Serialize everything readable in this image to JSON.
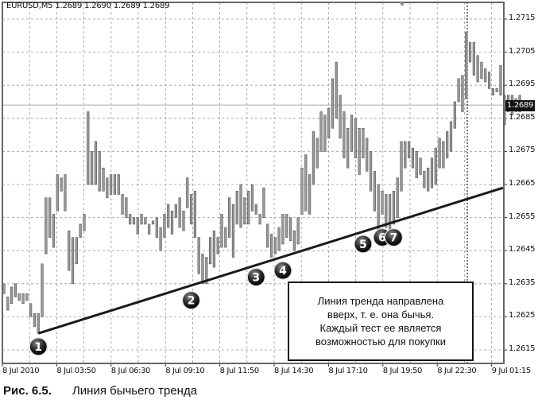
{
  "header": {
    "symbol": "EURUSD,M5",
    "ohlc": "1.2689 1.2690 1.2689 1.2689"
  },
  "current_price_label": "1.2689",
  "note": {
    "lines": [
      "Линия тренда направлена",
      "вверх, т. е. она бычья.",
      "Каждый тест ее является",
      "возможностью для покупки"
    ]
  },
  "caption": {
    "number": "Рис. 6.5.",
    "title": "Линия бычьего тренда"
  },
  "colors": {
    "bar_fill": "#9a9a9a",
    "bar_edge": "#555555",
    "trendline": "#1a1a1a",
    "grid": "#9a9a9a",
    "marker": "#1a1a1a"
  },
  "chart_data": {
    "type": "bar",
    "subtype": "ohlc-range",
    "grid": true,
    "ylim": [
      1.2608,
      1.272
    ],
    "y_ticks": [
      "1.2715",
      "1.2705",
      "1.2695",
      "1.2685",
      "1.2675",
      "1.2665",
      "1.2655",
      "1.2645",
      "1.2635",
      "1.2625",
      "1.2615"
    ],
    "x_ticks": [
      "8 Jul 2010",
      "8 Jul 03:50",
      "8 Jul 06:30",
      "8 Jul 09:10",
      "8 Jul 11:50",
      "8 Jul 14:30",
      "8 Jul 17:10",
      "8 Jul 19:50",
      "8 Jul 22:30",
      "9 Jul 01:15"
    ],
    "current_price": 1.2689,
    "bars_high_low": [
      [
        1.2635,
        1.2632
      ],
      [
        1.2631,
        1.2627
      ],
      [
        1.2634,
        1.2629
      ],
      [
        1.2635,
        1.2631
      ],
      [
        1.2632,
        1.263
      ],
      [
        1.2632,
        1.2629
      ],
      [
        1.2632,
        1.263
      ],
      [
        1.2629,
        1.2625
      ],
      [
        1.2626,
        1.2622
      ],
      [
        1.2626,
        1.262
      ],
      [
        1.2641,
        1.2625
      ],
      [
        1.2661,
        1.2644
      ],
      [
        1.2661,
        1.2649
      ],
      [
        1.2656,
        1.2646
      ],
      [
        1.2668,
        1.2657
      ],
      [
        1.2667,
        1.2663
      ],
      [
        1.2668,
        1.2657
      ],
      [
        1.2651,
        1.2639
      ],
      [
        1.2649,
        1.2635
      ],
      [
        1.2649,
        1.2641
      ],
      [
        1.2653,
        1.2649
      ],
      [
        1.2656,
        1.2651
      ],
      [
        1.2687,
        1.2665
      ],
      [
        1.2675,
        1.2665
      ],
      [
        1.2678,
        1.2665
      ],
      [
        1.2675,
        1.2663
      ],
      [
        1.267,
        1.2663
      ],
      [
        1.2667,
        1.2661
      ],
      [
        1.2668,
        1.2662
      ],
      [
        1.2668,
        1.2662
      ],
      [
        1.2668,
        1.2662
      ],
      [
        1.2662,
        1.2656
      ],
      [
        1.2661,
        1.2655
      ],
      [
        1.2656,
        1.2653
      ],
      [
        1.2655,
        1.2653
      ],
      [
        1.2655,
        1.265
      ],
      [
        1.2656,
        1.2653
      ],
      [
        1.2655,
        1.2653
      ],
      [
        1.2653,
        1.265
      ],
      [
        1.2654,
        1.2653
      ],
      [
        1.2655,
        1.2649
      ],
      [
        1.2652,
        1.2645
      ],
      [
        1.2656,
        1.2649
      ],
      [
        1.2659,
        1.2652
      ],
      [
        1.2657,
        1.265
      ],
      [
        1.2659,
        1.2655
      ],
      [
        1.2661,
        1.2652
      ],
      [
        1.2657,
        1.2651
      ],
      [
        1.2667,
        1.2658
      ],
      [
        1.2662,
        1.2653
      ],
      [
        1.2663,
        1.2649
      ],
      [
        1.2649,
        1.2638
      ],
      [
        1.2644,
        1.2635
      ],
      [
        1.2643,
        1.2635
      ],
      [
        1.2649,
        1.2641
      ],
      [
        1.2651,
        1.264
      ],
      [
        1.2649,
        1.2644
      ],
      [
        1.2656,
        1.2646
      ],
      [
        1.2652,
        1.2646
      ],
      [
        1.2661,
        1.2649
      ],
      [
        1.2659,
        1.2643
      ],
      [
        1.2663,
        1.2653
      ],
      [
        1.2665,
        1.2652
      ],
      [
        1.2661,
        1.2653
      ],
      [
        1.2663,
        1.2653
      ],
      [
        1.2665,
        1.2657
      ],
      [
        1.2659,
        1.2656
      ],
      [
        1.2656,
        1.2653
      ],
      [
        1.2664,
        1.2655
      ],
      [
        1.2653,
        1.2646
      ],
      [
        1.265,
        1.2643
      ],
      [
        1.2649,
        1.2644
      ],
      [
        1.2652,
        1.2645
      ],
      [
        1.2656,
        1.2647
      ],
      [
        1.2656,
        1.2649
      ],
      [
        1.2655,
        1.2648
      ],
      [
        1.2651,
        1.2645
      ],
      [
        1.2655,
        1.2647
      ],
      [
        1.267,
        1.2656
      ],
      [
        1.2674,
        1.2657
      ],
      [
        1.2668,
        1.2656
      ],
      [
        1.2681,
        1.2665
      ],
      [
        1.2679,
        1.267
      ],
      [
        1.2687,
        1.2675
      ],
      [
        1.2686,
        1.2675
      ],
      [
        1.2688,
        1.2679
      ],
      [
        1.2697,
        1.2682
      ],
      [
        1.2702,
        1.2685
      ],
      [
        1.2692,
        1.2679
      ],
      [
        1.2687,
        1.2673
      ],
      [
        1.2682,
        1.267
      ],
      [
        1.2686,
        1.2675
      ],
      [
        1.2685,
        1.2673
      ],
      [
        1.2682,
        1.2668
      ],
      [
        1.2682,
        1.2673
      ],
      [
        1.2679,
        1.2669
      ],
      [
        1.2675,
        1.2663
      ],
      [
        1.2669,
        1.2657
      ],
      [
        1.2665,
        1.2651
      ],
      [
        1.2663,
        1.2656
      ],
      [
        1.2662,
        1.2652
      ],
      [
        1.2662,
        1.2651
      ],
      [
        1.2663,
        1.2653
      ],
      [
        1.2667,
        1.2655
      ],
      [
        1.2678,
        1.2663
      ],
      [
        1.2678,
        1.267
      ],
      [
        1.2678,
        1.2673
      ],
      [
        1.2676,
        1.267
      ],
      [
        1.2675,
        1.2667
      ],
      [
        1.2673,
        1.2668
      ],
      [
        1.2669,
        1.2664
      ],
      [
        1.267,
        1.2663
      ],
      [
        1.2673,
        1.2664
      ],
      [
        1.2676,
        1.2665
      ],
      [
        1.2679,
        1.267
      ],
      [
        1.2678,
        1.267
      ],
      [
        1.2681,
        1.2673
      ],
      [
        1.2684,
        1.2675
      ],
      [
        1.269,
        1.2682
      ],
      [
        1.2697,
        1.269
      ],
      [
        1.2698,
        1.2687
      ],
      [
        1.2711,
        1.2691
      ],
      [
        1.2708,
        1.2702
      ],
      [
        1.2708,
        1.2698
      ],
      [
        1.2704,
        1.2696
      ],
      [
        1.2702,
        1.2697
      ],
      [
        1.27,
        1.2696
      ],
      [
        1.2699,
        1.2694
      ],
      [
        1.2694,
        1.2692
      ],
      [
        1.2694,
        1.2693
      ],
      [
        1.2701,
        1.2692
      ],
      [
        1.2692,
        1.2683
      ],
      [
        1.2692,
        1.2687
      ],
      [
        1.2692,
        1.2686
      ],
      [
        1.2691,
        1.2687
      ],
      [
        1.2692,
        1.2687
      ]
    ],
    "trendline": {
      "from_bar": 9,
      "from_price": 1.262,
      "to_bar": 130.6,
      "to_price": 1.2664
    },
    "markers": [
      {
        "label": "1",
        "bar": 9,
        "price": 1.2616
      },
      {
        "label": "2",
        "bar": 49,
        "price": 1.263
      },
      {
        "label": "3",
        "bar": 66,
        "price": 1.2637
      },
      {
        "label": "4",
        "bar": 73,
        "price": 1.2639
      },
      {
        "label": "5",
        "bar": 94,
        "price": 1.2647
      },
      {
        "label": "6",
        "bar": 99,
        "price": 1.2649
      },
      {
        "label": "7",
        "bar": 102,
        "price": 1.2649
      }
    ]
  }
}
